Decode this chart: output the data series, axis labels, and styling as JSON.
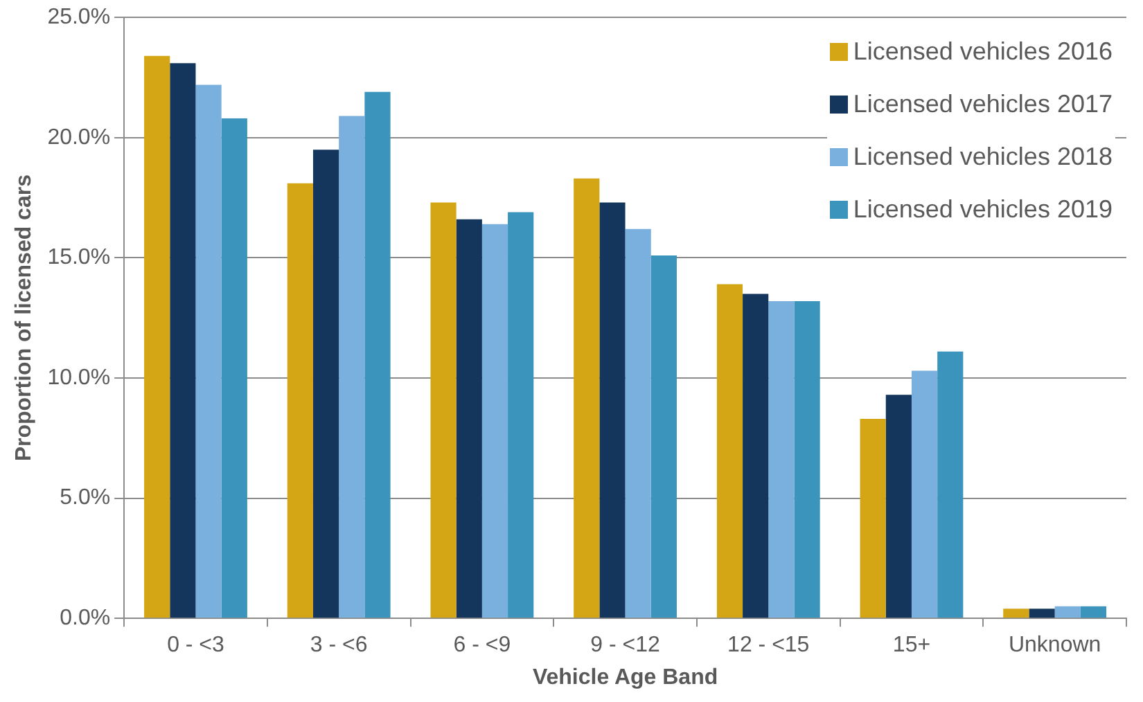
{
  "chart_data": {
    "type": "bar",
    "xlabel": "Vehicle Age Band",
    "ylabel": "Proportion of licensed cars",
    "categories": [
      "0 - <3",
      "3 - <6",
      "6 - <9",
      "9 - <12",
      "12 - <15",
      "15+",
      "Unknown"
    ],
    "series": [
      {
        "name": "Licensed vehicles 2016",
        "color": "#d4a514",
        "values": [
          23.4,
          18.1,
          17.3,
          18.3,
          13.9,
          8.3,
          0.4
        ]
      },
      {
        "name": "Licensed vehicles 2017",
        "color": "#14365c",
        "values": [
          23.1,
          19.5,
          16.6,
          17.3,
          13.5,
          9.3,
          0.4
        ]
      },
      {
        "name": "Licensed vehicles 2018",
        "color": "#7ab0de",
        "values": [
          22.2,
          20.9,
          16.4,
          16.2,
          13.2,
          10.3,
          0.5
        ]
      },
      {
        "name": "Licensed vehicles 2019",
        "color": "#3a94bc",
        "values": [
          20.8,
          21.9,
          16.9,
          15.1,
          13.2,
          11.1,
          0.5
        ]
      }
    ],
    "ylim": [
      0,
      25
    ],
    "yticks": [
      {
        "value": 0,
        "label": "0.0%"
      },
      {
        "value": 5,
        "label": "5.0%"
      },
      {
        "value": 10,
        "label": "10.0%"
      },
      {
        "value": 15,
        "label": "15.0%"
      },
      {
        "value": 20,
        "label": "20.0%"
      },
      {
        "value": 25,
        "label": "25.0%"
      }
    ],
    "grid": "y",
    "legend": "top right"
  }
}
